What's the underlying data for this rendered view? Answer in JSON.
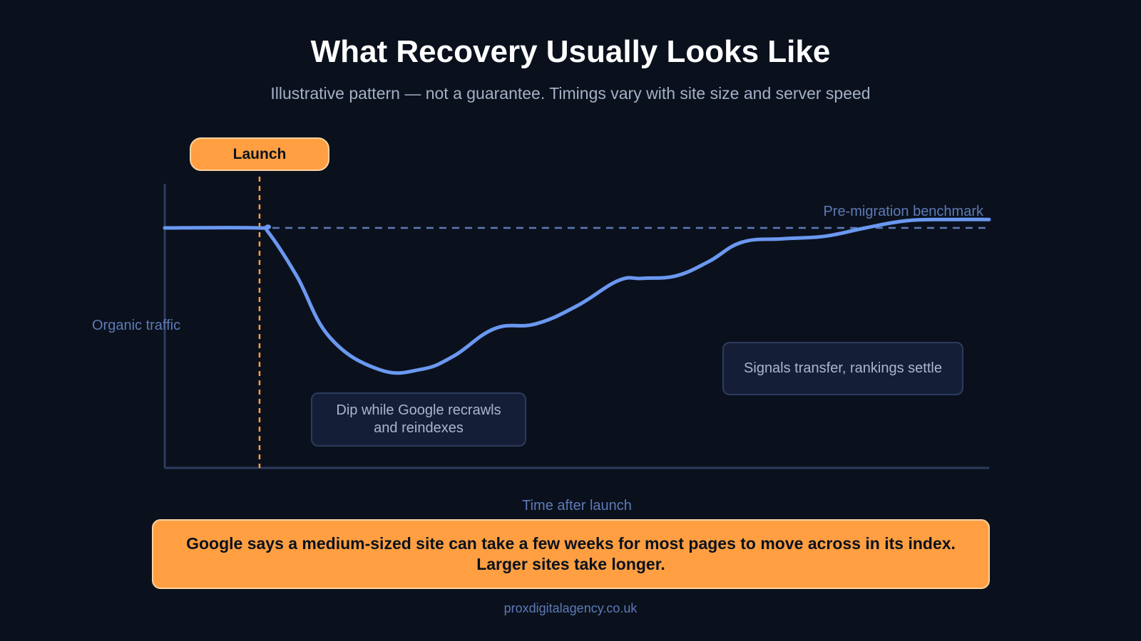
{
  "title": "What Recovery Usually Looks Like",
  "subtitle": "Illustrative pattern — not a guarantee. Timings vary with site size and server speed",
  "launch_label": "Launch",
  "callouts": {
    "dip": "Dip while Google recrawls and reindexes",
    "settle": "Signals transfer, rankings settle"
  },
  "banner": "Google says a medium-sized site can take a few weeks for most pages to move across in its index. Larger sites take longer.",
  "footer": "proxdigitalagency.co.uk",
  "colors": {
    "background": "#0a111d",
    "line": "#6b98f0",
    "benchmark": "#5e79b5",
    "launch_marker": "#ff9f42",
    "axis": "#2c3c5d",
    "banner": "#ff9f42"
  },
  "chart_data": {
    "type": "line",
    "title": "What Recovery Usually Looks Like",
    "xlabel": "Time after launch",
    "ylabel": "Organic traffic",
    "x_ticks_shown": false,
    "y_ticks_shown": false,
    "grid": false,
    "xlim": [
      0,
      100
    ],
    "ylim": [
      0,
      100
    ],
    "benchmark": {
      "label": "Pre-migration benchmark",
      "value": 100
    },
    "launch_x": 11.5,
    "series": [
      {
        "x": [
          0,
          11.5,
          12.5,
          16,
          20,
          26,
          31,
          35,
          40,
          45,
          50,
          55,
          58,
          62,
          66,
          70,
          75,
          80,
          85,
          90,
          95,
          100
        ],
        "y": [
          100,
          100,
          98.5,
          80,
          54.5,
          41,
          41,
          46.5,
          58,
          60,
          67.5,
          78,
          79,
          80,
          86,
          94,
          95.5,
          96.5,
          100,
          103,
          103.5,
          103.5
        ]
      }
    ]
  }
}
